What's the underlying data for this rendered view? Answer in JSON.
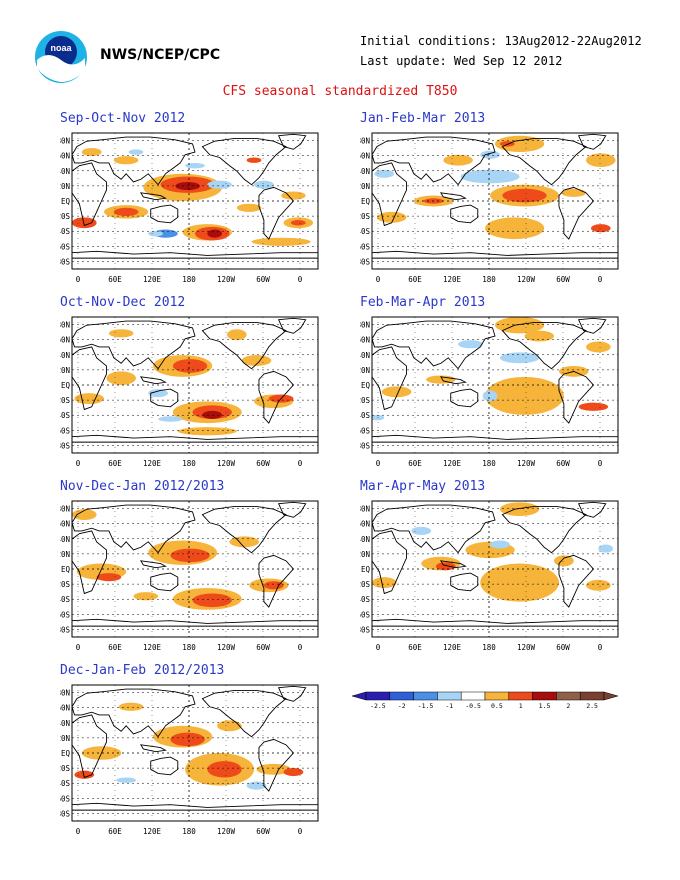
{
  "header": {
    "org": "NWS/NCEP/CPC",
    "initial_conditions": "Initial conditions: 13Aug2012-22Aug2012",
    "last_update": "Last update: Wed Sep 12 2012",
    "title": "CFS seasonal standardized T850",
    "logo_text": "noaa"
  },
  "panels": [
    {
      "id": "son",
      "title": "Sep-Oct-Nov 2012"
    },
    {
      "id": "jfm",
      "title": "Jan-Feb-Mar 2013"
    },
    {
      "id": "ond",
      "title": "Oct-Nov-Dec 2012"
    },
    {
      "id": "fma",
      "title": "Feb-Mar-Apr 2013"
    },
    {
      "id": "ndj",
      "title": "Nov-Dec-Jan 2012/2013"
    },
    {
      "id": "mam",
      "title": "Mar-Apr-May 2013"
    },
    {
      "id": "djf",
      "title": "Dec-Jan-Feb 2012/2013"
    }
  ],
  "axes": {
    "lat_labels": [
      "80N",
      "60N",
      "40N",
      "20N",
      "EQ",
      "20S",
      "40S",
      "60S",
      "80S"
    ],
    "lon_labels": [
      "0",
      "60E",
      "120E",
      "180",
      "120W",
      "60W",
      "0"
    ]
  },
  "colorbar": {
    "labels": [
      "-2.5",
      "-2",
      "-1.5",
      "-1",
      "-0.5",
      "0.5",
      "1",
      "1.5",
      "2",
      "2.5"
    ],
    "colors": [
      "#2a1fb0",
      "#2f5fd8",
      "#4a90e6",
      "#a8d4f5",
      "#ffffff",
      "#f7b43a",
      "#ef4a1a",
      "#a80c0c",
      "#8f5f4a",
      "#7a4030"
    ]
  },
  "colors": {
    "title_red": "#d11111",
    "panel_title_blue": "#2a38c8"
  }
}
